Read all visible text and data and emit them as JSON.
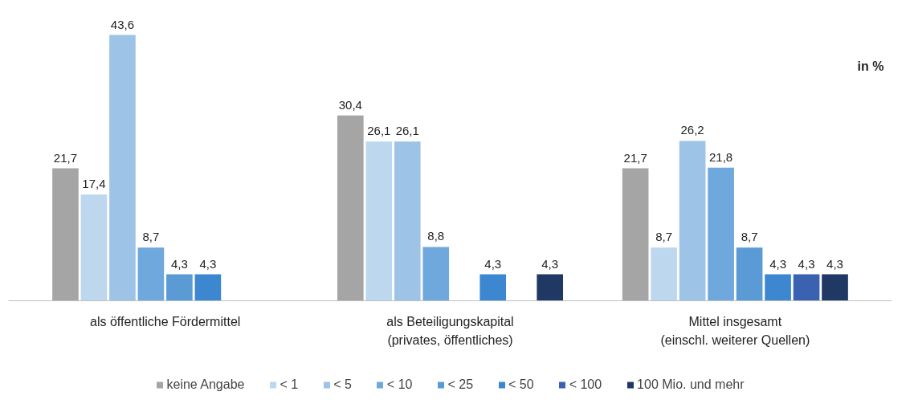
{
  "chart_data": {
    "type": "bar",
    "categories": [
      "als öffentliche Fördermittel",
      "als Beteiligungskapital\n(privates, öffentliches)",
      "Mittel insgesamt\n(einschl. weiterer Quellen)"
    ],
    "series": [
      {
        "name": "keine Angabe",
        "color": "#a5a5a5",
        "values": [
          21.7,
          30.4,
          21.7
        ],
        "value_labels": [
          "21,7",
          "30,4",
          "21,7"
        ]
      },
      {
        "name": "< 1",
        "color": "#bdd7ee",
        "values": [
          17.4,
          26.1,
          8.7
        ],
        "value_labels": [
          "17,4",
          "26,1",
          "8,7"
        ]
      },
      {
        "name": "< 5",
        "color": "#9dc3e6",
        "values": [
          43.6,
          26.1,
          26.2
        ],
        "value_labels": [
          "43,6",
          "26,1",
          "26,2"
        ]
      },
      {
        "name": "< 10",
        "color": "#6fa8dc",
        "values": [
          8.7,
          8.8,
          21.8
        ],
        "value_labels": [
          "8,7",
          "8,8",
          "21,8"
        ]
      },
      {
        "name": "< 25",
        "color": "#5b9bd5",
        "values": [
          4.3,
          null,
          8.7
        ],
        "value_labels": [
          "4,3",
          null,
          "8,7"
        ]
      },
      {
        "name": "< 50",
        "color": "#3c87d0",
        "values": [
          4.3,
          4.3,
          4.3
        ],
        "value_labels": [
          "4,3",
          "4,3",
          "4,3"
        ]
      },
      {
        "name": "< 100",
        "color": "#3a62b0",
        "values": [
          null,
          null,
          4.3
        ],
        "value_labels": [
          null,
          null,
          "4,3"
        ]
      },
      {
        "name": "100 Mio. und mehr",
        "color": "#1f3864",
        "values": [
          null,
          4.3,
          4.3
        ],
        "value_labels": [
          null,
          "4,3",
          "4,3"
        ]
      }
    ],
    "annotations": [
      "in %"
    ],
    "legend": "bottom"
  }
}
